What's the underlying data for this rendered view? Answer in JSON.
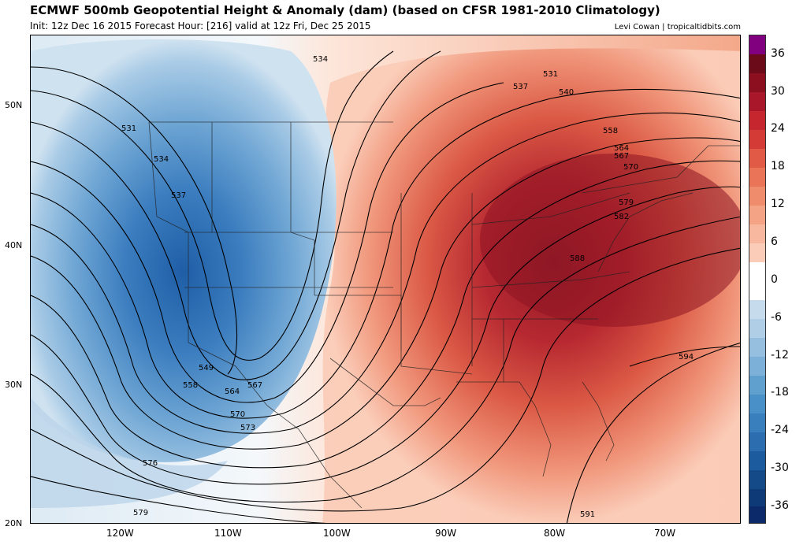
{
  "header": {
    "title": "ECMWF 500mb Geopotential Height & Anomaly (dam) (based on CFSR 1981-2010 Climatology)",
    "subtitle": "Init: 12z Dec 16 2015   Forecast Hour: [216]   valid at 12z Fri, Dec 25 2015",
    "credit": "Levi Cowan | tropicaltidbits.com"
  },
  "map": {
    "lat_labels": [
      "50N",
      "40N",
      "30N",
      "20N"
    ],
    "lon_labels": [
      "120W",
      "110W",
      "100W",
      "90W",
      "80W",
      "70W"
    ],
    "contour_labels": [
      "534",
      "531",
      "537",
      "540",
      "531",
      "534",
      "537",
      "558",
      "564",
      "567",
      "570",
      "579",
      "582",
      "588",
      "594",
      "549",
      "558",
      "564",
      "567",
      "570",
      "573",
      "576",
      "579",
      "591"
    ]
  },
  "colorbar": {
    "labels": [
      "36",
      "30",
      "24",
      "18",
      "12",
      "6",
      "0",
      "-6",
      "-12",
      "-18",
      "-24",
      "-30",
      "-36"
    ],
    "colors": {
      "max_purple": "#800080",
      "dark_red": "#8b0f1e",
      "red": "#c6262e",
      "salmon": "#ef9b7c",
      "peach": "#fbd8c6",
      "white": "#ffffff",
      "light_blue": "#c6dcec",
      "blue": "#4a90c8",
      "dark_blue": "#1c5b9e",
      "navy": "#0c2a6a"
    }
  }
}
